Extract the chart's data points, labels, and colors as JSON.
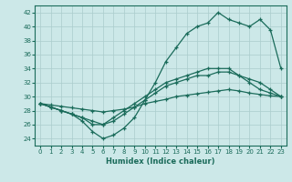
{
  "xlabel": "Humidex (Indice chaleur)",
  "x": [
    0,
    1,
    2,
    3,
    4,
    5,
    6,
    7,
    8,
    9,
    10,
    11,
    12,
    13,
    14,
    15,
    16,
    17,
    18,
    19,
    20,
    21,
    22,
    23
  ],
  "series1": [
    29,
    28.5,
    28,
    27.5,
    26.5,
    25,
    24,
    24.5,
    25.5,
    27,
    29.5,
    32,
    35,
    37,
    39,
    40,
    40.5,
    42,
    41,
    40.5,
    40,
    41,
    39.5,
    34
  ],
  "series2": [
    29,
    28.5,
    28,
    27.5,
    27,
    26,
    26,
    27,
    28,
    29,
    30,
    31,
    32,
    32.5,
    33,
    33.5,
    34,
    34,
    34,
    33,
    32.5,
    32,
    31,
    30
  ],
  "series3": [
    29,
    28.8,
    28.6,
    28.4,
    28.2,
    28,
    27.8,
    28,
    28.2,
    28.5,
    29,
    29.3,
    29.6,
    30,
    30.2,
    30.4,
    30.6,
    30.8,
    31,
    30.8,
    30.5,
    30.3,
    30.1,
    30
  ],
  "series4": [
    29,
    28.5,
    28,
    27.5,
    27,
    26.5,
    26,
    26.5,
    27.5,
    28.5,
    29.5,
    30.5,
    31.5,
    32,
    32.5,
    33,
    33,
    33.5,
    33.5,
    33,
    32,
    31,
    30.5,
    30
  ],
  "line_color": "#1a6b5a",
  "bg_color": "#cce8e8",
  "grid_color": "#aacccc",
  "ylim": [
    23,
    43
  ],
  "xlim": [
    -0.5,
    23.5
  ],
  "yticks": [
    24,
    26,
    28,
    30,
    32,
    34,
    36,
    38,
    40,
    42
  ],
  "xticks": [
    0,
    1,
    2,
    3,
    4,
    5,
    6,
    7,
    8,
    9,
    10,
    11,
    12,
    13,
    14,
    15,
    16,
    17,
    18,
    19,
    20,
    21,
    22,
    23
  ],
  "marker_size": 3.5,
  "lw": 0.9
}
